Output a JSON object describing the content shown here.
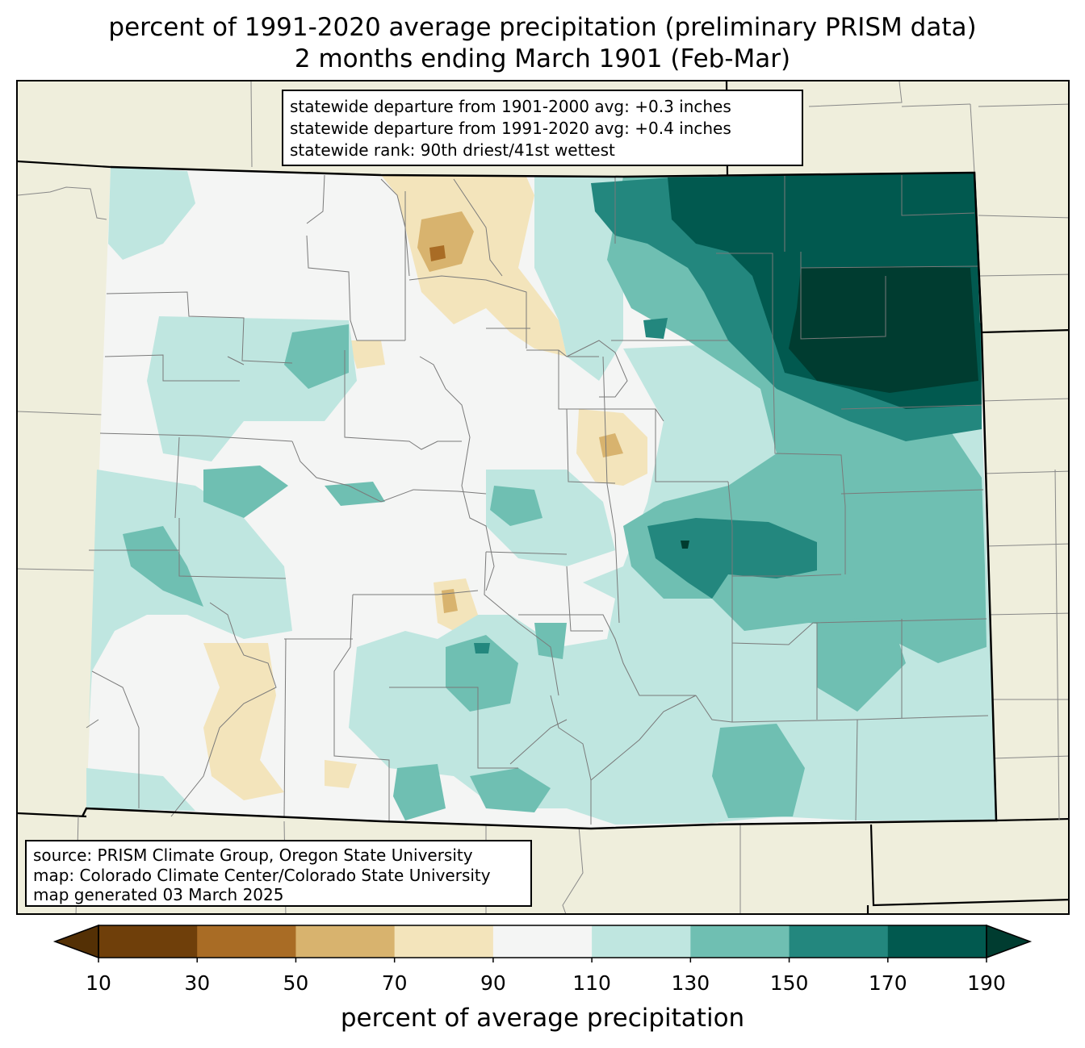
{
  "title": {
    "line1": "percent of 1991-2020 average precipitation (preliminary PRISM data)",
    "line2": "2 months ending March 1901 (Feb-Mar)"
  },
  "stats": {
    "line1": "statewide departure from 1901-2000 avg: +0.3 inches",
    "line2": "statewide departure from 1991-2020 avg: +0.4 inches",
    "line3": "statewide rank: 90th driest/41st wettest"
  },
  "source": {
    "line1": "source: PRISM Climate Group, Oregon State University",
    "line2": "map: Colorado Climate Center/Colorado State University",
    "line3": "map generated 03 March 2025"
  },
  "colorbar": {
    "label": "percent of average precipitation",
    "ticks": [
      "10",
      "30",
      "50",
      "70",
      "90",
      "110",
      "130",
      "150",
      "170",
      "190"
    ],
    "under_color": "#543005",
    "over_color": "#003c30",
    "colors": [
      "#6f3f0a",
      "#a96c25",
      "#d8b36e",
      "#f3e4bb",
      "#f4f5f4",
      "#bfe6e0",
      "#6fbfb2",
      "#23877e",
      "#01594f"
    ]
  },
  "colors": {
    "background": "#efeedc",
    "state_fill": "#f4f5f4",
    "county_line": "#808080",
    "state_line": "#000000"
  }
}
